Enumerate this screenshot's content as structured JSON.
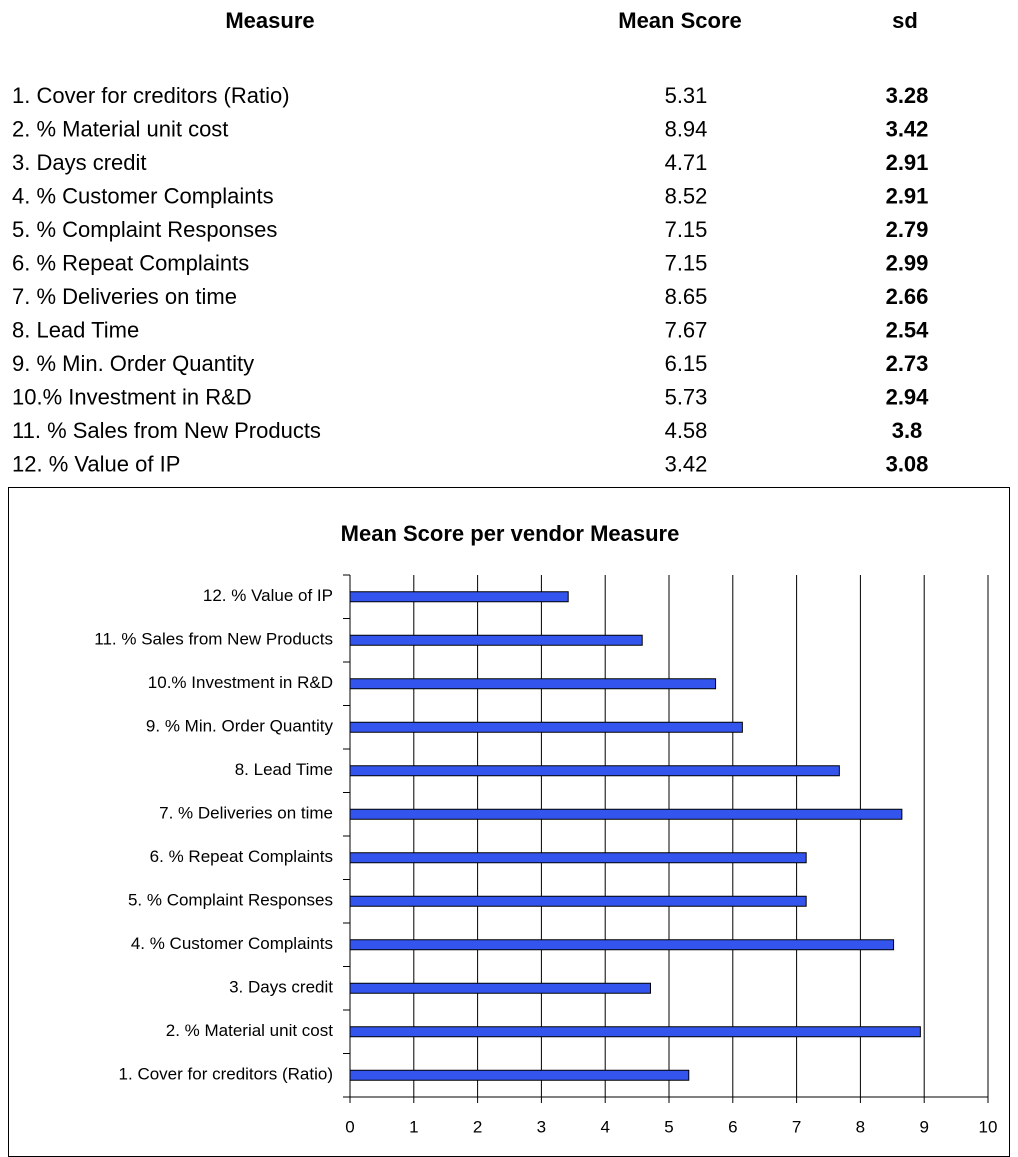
{
  "table": {
    "header": [
      "Measure",
      "Mean Score",
      "sd"
    ],
    "rows": [
      [
        "1. Cover for creditors (Ratio)",
        5.31,
        3.28
      ],
      [
        "2. % Material unit cost",
        8.94,
        3.42
      ],
      [
        "3. Days credit",
        4.71,
        2.91
      ],
      [
        "4. % Customer Complaints",
        8.52,
        2.91
      ],
      [
        "5. % Complaint Responses",
        7.15,
        2.79
      ],
      [
        "6. % Repeat Complaints",
        7.15,
        2.99
      ],
      [
        "7. % Deliveries on time",
        8.65,
        2.66
      ],
      [
        "8. Lead Time",
        7.67,
        2.54
      ],
      [
        "9. % Min. Order Quantity",
        6.15,
        2.73
      ],
      [
        "10.% Investment in R&D",
        5.73,
        2.94
      ],
      [
        "11. % Sales from New Products",
        4.58,
        3.8
      ],
      [
        "12. % Value of IP",
        3.42,
        3.08
      ]
    ]
  },
  "chart_data": {
    "type": "bar",
    "orientation": "horizontal",
    "title": "Mean Score per vendor Measure",
    "categories": [
      "1. Cover for creditors (Ratio)",
      "2. % Material unit cost",
      "3. Days credit",
      "4. % Customer Complaints",
      "5. % Complaint Responses",
      "6. % Repeat Complaints",
      "7. % Deliveries on time",
      "8. Lead Time",
      "9. % Min. Order Quantity",
      "10.% Investment in R&D",
      "11. % Sales from New Products",
      "12. % Value of IP"
    ],
    "values": [
      5.31,
      8.94,
      4.71,
      8.52,
      7.15,
      7.15,
      8.65,
      7.67,
      6.15,
      5.73,
      4.58,
      3.42
    ],
    "color": "#3355ee",
    "xlim": [
      0,
      10
    ],
    "xticks": [
      0,
      1,
      2,
      3,
      4,
      5,
      6,
      7,
      8,
      9,
      10
    ],
    "grid": true
  }
}
